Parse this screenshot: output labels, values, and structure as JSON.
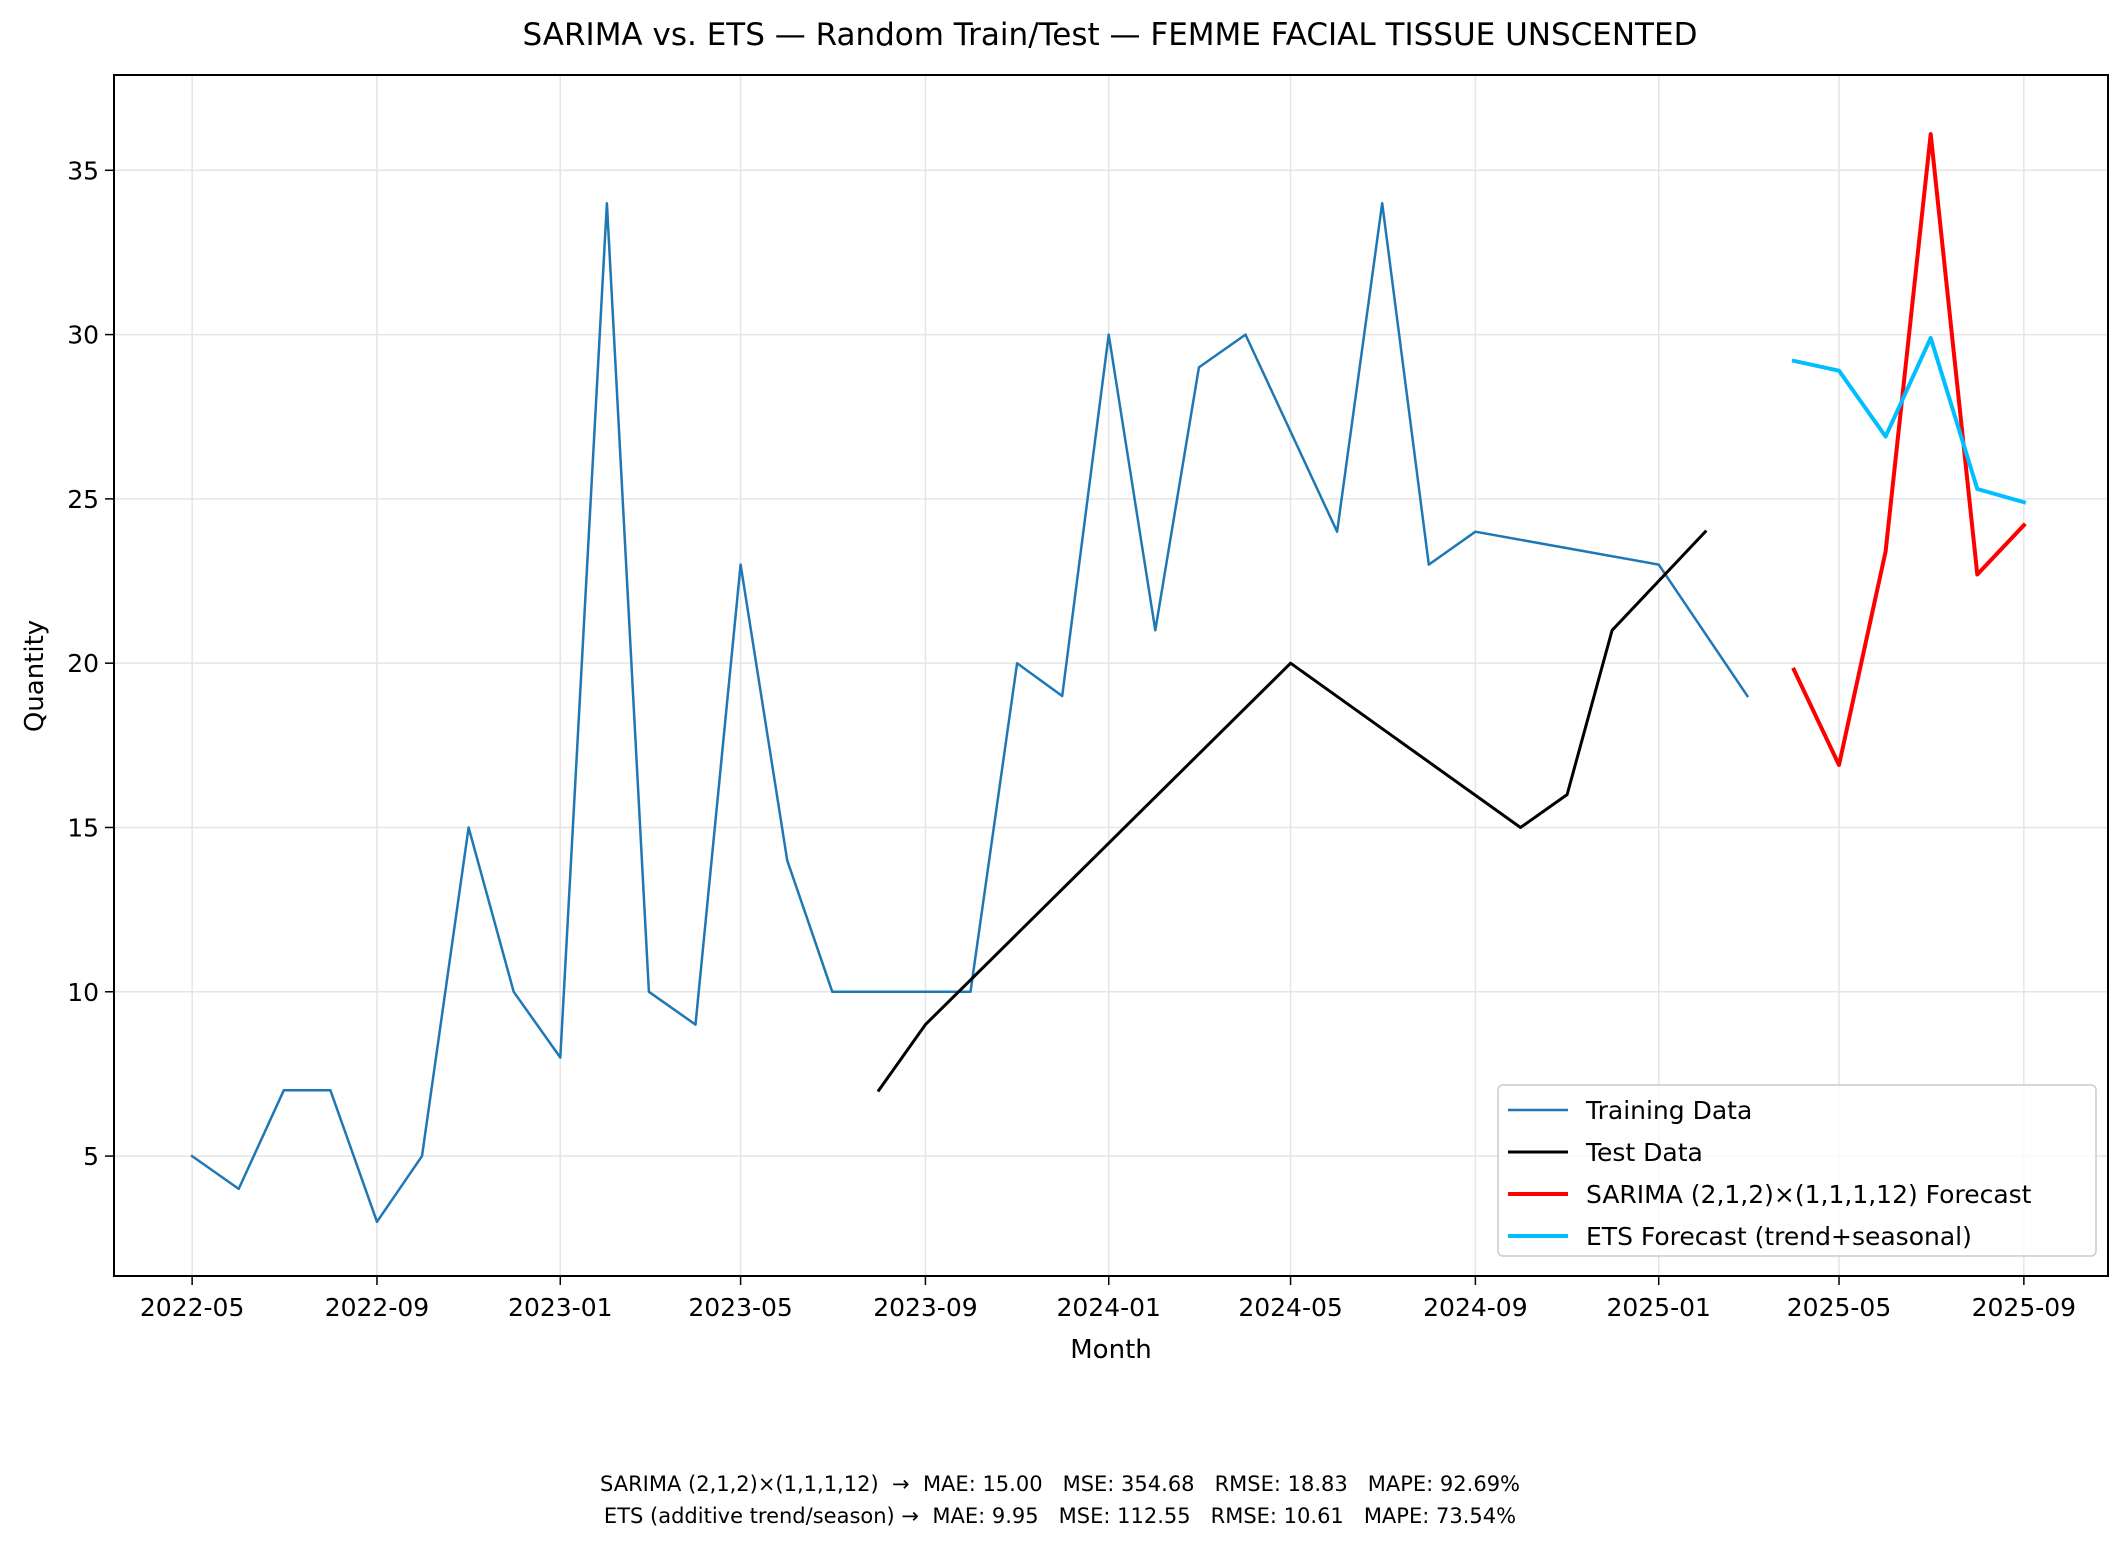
{
  "chart_data": {
    "type": "line",
    "title": "SARIMA vs. ETS — Random Train/Test — FEMME FACIAL TISSUE UNSCENTED",
    "xlabel": "Month",
    "ylabel": "Quantity",
    "xlim": [
      "2022-03-10",
      "2025-10-27"
    ],
    "ylim": [
      1.35,
      37.9
    ],
    "x_ticks": [
      "2022-05",
      "2022-09",
      "2023-01",
      "2023-05",
      "2023-09",
      "2024-01",
      "2024-05",
      "2024-09",
      "2025-01",
      "2025-05",
      "2025-09"
    ],
    "y_ticks": [
      5,
      10,
      15,
      20,
      25,
      30,
      35
    ],
    "grid": true,
    "legend_position": "lower right",
    "series": [
      {
        "name": "Training Data",
        "color": "#1f77b4",
        "points": [
          [
            "2022-05",
            5
          ],
          [
            "2022-06",
            4
          ],
          [
            "2022-07",
            7
          ],
          [
            "2022-08",
            7
          ],
          [
            "2022-09",
            3
          ],
          [
            "2022-10",
            5
          ],
          [
            "2022-11",
            15
          ],
          [
            "2022-12",
            10
          ],
          [
            "2023-01",
            8
          ],
          [
            "2023-02",
            34
          ],
          [
            "2023-03",
            10
          ],
          [
            "2023-04",
            9
          ],
          [
            "2023-05",
            23
          ],
          [
            "2023-06",
            14
          ],
          [
            "2023-07",
            10
          ],
          [
            "2023-10",
            10
          ],
          [
            "2023-11",
            20
          ],
          [
            "2023-12",
            19
          ],
          [
            "2024-01",
            30
          ],
          [
            "2024-02",
            21
          ],
          [
            "2024-03",
            29
          ],
          [
            "2024-04",
            30
          ],
          [
            "2024-06",
            24
          ],
          [
            "2024-07",
            34
          ],
          [
            "2024-08",
            23
          ],
          [
            "2024-09",
            24
          ],
          [
            "2025-01",
            23
          ],
          [
            "2025-03",
            19
          ]
        ]
      },
      {
        "name": "Test Data",
        "color": "#000000",
        "points": [
          [
            "2023-08",
            7
          ],
          [
            "2023-09",
            9
          ],
          [
            "2024-05",
            20
          ],
          [
            "2024-10",
            15
          ],
          [
            "2024-11",
            16
          ],
          [
            "2024-12",
            21
          ],
          [
            "2025-02",
            24
          ]
        ]
      },
      {
        "name": "SARIMA (2,1,2)×(1,1,1,12) Forecast",
        "color": "#ff0000",
        "points": [
          [
            "2025-04",
            19.8
          ],
          [
            "2025-05",
            16.9
          ],
          [
            "2025-06",
            23.4
          ],
          [
            "2025-07",
            36.1
          ],
          [
            "2025-08",
            22.7
          ],
          [
            "2025-09",
            24.2
          ]
        ]
      },
      {
        "name": "ETS Forecast (trend+seasonal)",
        "color": "#00bfff",
        "points": [
          [
            "2025-04",
            29.2
          ],
          [
            "2025-05",
            28.9
          ],
          [
            "2025-06",
            26.9
          ],
          [
            "2025-07",
            29.9
          ],
          [
            "2025-08",
            25.3
          ],
          [
            "2025-09",
            24.9
          ]
        ]
      }
    ]
  },
  "footer": {
    "line1": "SARIMA (2,1,2)×(1,1,1,12)  →  MAE: 15.00   MSE: 354.68   RMSE: 18.83   MAPE: 92.69%",
    "line2": "ETS (additive trend/season) →  MAE: 9.95   MSE: 112.55   RMSE: 10.61   MAPE: 73.54%"
  }
}
